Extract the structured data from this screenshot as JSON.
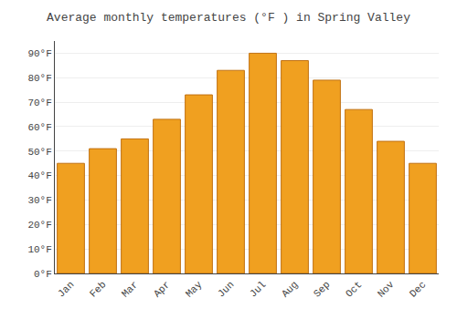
{
  "chart_data": {
    "type": "bar",
    "title": "Average monthly temperatures (°F ) in Spring Valley",
    "categories": [
      "Jan",
      "Feb",
      "Mar",
      "Apr",
      "May",
      "Jun",
      "Jul",
      "Aug",
      "Sep",
      "Oct",
      "Nov",
      "Dec"
    ],
    "values": [
      45,
      51,
      55,
      63,
      73,
      83,
      90,
      87,
      79,
      67,
      54,
      45
    ],
    "color": "#F0A020",
    "ylim": [
      0,
      95
    ],
    "yticks": [
      {
        "value": 0,
        "label": "0°F"
      },
      {
        "value": 10,
        "label": "10°F"
      },
      {
        "value": 20,
        "label": "20°F"
      },
      {
        "value": 30,
        "label": "30°F"
      },
      {
        "value": 40,
        "label": "40°F"
      },
      {
        "value": 50,
        "label": "50°F"
      },
      {
        "value": 60,
        "label": "60°F"
      },
      {
        "value": 70,
        "label": "70°F"
      },
      {
        "value": 80,
        "label": "80°F"
      },
      {
        "value": 90,
        "label": "90°F"
      }
    ],
    "grid": true
  }
}
